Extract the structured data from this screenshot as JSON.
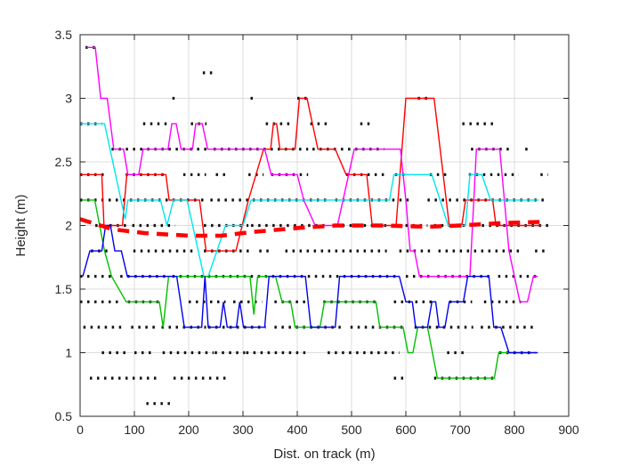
{
  "chart_data": {
    "type": "line",
    "title": "",
    "xlabel": "Dist. on track (m)",
    "ylabel": "Height (m)",
    "xlim": [
      0,
      900
    ],
    "ylim": [
      0.5,
      3.5
    ],
    "xticks": [
      0,
      100,
      200,
      300,
      400,
      500,
      600,
      700,
      800,
      900
    ],
    "xtick_labels": [
      "0",
      "100",
      "200",
      "300",
      "400",
      "500",
      "600",
      "700",
      "800",
      "900"
    ],
    "yticks": [
      0.5,
      1,
      1.5,
      2,
      2.5,
      3,
      3.5
    ],
    "ytick_labels": [
      "0.5",
      "1",
      "1.5",
      "2",
      "2.5",
      "3",
      "3.5"
    ],
    "grid": true,
    "grid_color": "#dcdcdc",
    "box_color": "#262626",
    "legend": "none",
    "series": [
      {
        "name": "red-line",
        "color": "#ff0000",
        "width": 1.4,
        "points": [
          [
            0,
            2.4
          ],
          [
            40,
            2.4
          ],
          [
            44,
            2.0
          ],
          [
            78,
            2.0
          ],
          [
            86,
            2.4
          ],
          [
            158,
            2.4
          ],
          [
            164,
            2.2
          ],
          [
            220,
            2.2
          ],
          [
            232,
            1.8
          ],
          [
            287,
            1.8
          ],
          [
            310,
            2.2
          ],
          [
            338,
            2.6
          ],
          [
            351,
            2.6
          ],
          [
            356,
            2.8
          ],
          [
            362,
            2.8
          ],
          [
            368,
            2.6
          ],
          [
            396,
            2.6
          ],
          [
            404,
            3.0
          ],
          [
            418,
            3.0
          ],
          [
            428,
            2.8
          ],
          [
            438,
            2.6
          ],
          [
            470,
            2.6
          ],
          [
            490,
            2.4
          ],
          [
            528,
            2.4
          ],
          [
            538,
            2.0
          ],
          [
            582,
            2.0
          ],
          [
            600,
            3.0
          ],
          [
            652,
            3.0
          ],
          [
            680,
            2.0
          ],
          [
            703,
            2.0
          ],
          [
            710,
            2.2
          ],
          [
            760,
            2.2
          ],
          [
            766,
            2.0
          ],
          [
            850,
            2.0
          ]
        ]
      },
      {
        "name": "magenta-line",
        "color": "#ff00ff",
        "width": 1.4,
        "points": [
          [
            12,
            3.4
          ],
          [
            28,
            3.4
          ],
          [
            38,
            3.0
          ],
          [
            50,
            3.0
          ],
          [
            62,
            2.6
          ],
          [
            80,
            2.6
          ],
          [
            88,
            2.4
          ],
          [
            108,
            2.4
          ],
          [
            116,
            2.6
          ],
          [
            162,
            2.6
          ],
          [
            169,
            2.8
          ],
          [
            177,
            2.8
          ],
          [
            186,
            2.6
          ],
          [
            207,
            2.6
          ],
          [
            213,
            2.8
          ],
          [
            225,
            2.8
          ],
          [
            235,
            2.6
          ],
          [
            340,
            2.6
          ],
          [
            352,
            2.4
          ],
          [
            400,
            2.4
          ],
          [
            412,
            2.2
          ],
          [
            433,
            2.0
          ],
          [
            474,
            2.0
          ],
          [
            505,
            2.6
          ],
          [
            590,
            2.6
          ],
          [
            600,
            2.2
          ],
          [
            608,
            1.8
          ],
          [
            616,
            1.8
          ],
          [
            625,
            1.6
          ],
          [
            718,
            1.6
          ],
          [
            730,
            2.6
          ],
          [
            773,
            2.6
          ],
          [
            790,
            1.8
          ],
          [
            800,
            1.6
          ],
          [
            810,
            1.4
          ],
          [
            824,
            1.4
          ],
          [
            835,
            1.6
          ],
          [
            843,
            1.6
          ]
        ]
      },
      {
        "name": "cyan-line",
        "color": "#00e5ee",
        "width": 1.4,
        "points": [
          [
            0,
            2.8
          ],
          [
            45,
            2.8
          ],
          [
            83,
            2.05
          ],
          [
            88,
            2.2
          ],
          [
            148,
            2.2
          ],
          [
            160,
            2.0
          ],
          [
            172,
            2.2
          ],
          [
            197,
            2.2
          ],
          [
            228,
            1.6
          ],
          [
            236,
            1.6
          ],
          [
            268,
            2.0
          ],
          [
            300,
            2.0
          ],
          [
            315,
            2.2
          ],
          [
            570,
            2.2
          ],
          [
            578,
            2.4
          ],
          [
            648,
            2.4
          ],
          [
            678,
            2.0
          ],
          [
            710,
            2.0
          ],
          [
            718,
            2.4
          ],
          [
            740,
            2.4
          ],
          [
            756,
            2.2
          ],
          [
            845,
            2.2
          ]
        ]
      },
      {
        "name": "green-line",
        "color": "#00c000",
        "width": 1.4,
        "points": [
          [
            3,
            2.2
          ],
          [
            27,
            2.2
          ],
          [
            45,
            1.8
          ],
          [
            58,
            1.6
          ],
          [
            85,
            1.4
          ],
          [
            146,
            1.4
          ],
          [
            153,
            1.2
          ],
          [
            163,
            1.6
          ],
          [
            313,
            1.6
          ],
          [
            320,
            1.3
          ],
          [
            327,
            1.6
          ],
          [
            360,
            1.6
          ],
          [
            372,
            1.4
          ],
          [
            388,
            1.4
          ],
          [
            396,
            1.2
          ],
          [
            442,
            1.2
          ],
          [
            450,
            1.4
          ],
          [
            545,
            1.4
          ],
          [
            552,
            1.2
          ],
          [
            595,
            1.2
          ],
          [
            604,
            1.0
          ],
          [
            613,
            1.0
          ],
          [
            622,
            1.2
          ],
          [
            640,
            1.2
          ],
          [
            658,
            0.8
          ],
          [
            763,
            0.8
          ],
          [
            771,
            1.0
          ],
          [
            833,
            1.0
          ]
        ]
      },
      {
        "name": "blue-line",
        "color": "#0000ee",
        "width": 1.4,
        "points": [
          [
            5,
            1.6
          ],
          [
            18,
            1.8
          ],
          [
            40,
            1.8
          ],
          [
            47,
            2.0
          ],
          [
            56,
            2.0
          ],
          [
            64,
            1.8
          ],
          [
            76,
            1.8
          ],
          [
            87,
            1.6
          ],
          [
            178,
            1.6
          ],
          [
            192,
            1.2
          ],
          [
            224,
            1.2
          ],
          [
            230,
            1.6
          ],
          [
            236,
            1.2
          ],
          [
            258,
            1.2
          ],
          [
            264,
            1.4
          ],
          [
            271,
            1.2
          ],
          [
            288,
            1.2
          ],
          [
            294,
            1.4
          ],
          [
            301,
            1.2
          ],
          [
            340,
            1.2
          ],
          [
            348,
            1.6
          ],
          [
            415,
            1.6
          ],
          [
            425,
            1.2
          ],
          [
            470,
            1.2
          ],
          [
            478,
            1.6
          ],
          [
            588,
            1.6
          ],
          [
            600,
            1.4
          ],
          [
            612,
            1.4
          ],
          [
            618,
            1.2
          ],
          [
            640,
            1.2
          ],
          [
            648,
            1.4
          ],
          [
            655,
            1.4
          ],
          [
            661,
            1.2
          ],
          [
            672,
            1.2
          ],
          [
            680,
            1.4
          ],
          [
            706,
            1.4
          ],
          [
            714,
            1.6
          ],
          [
            753,
            1.6
          ],
          [
            762,
            1.2
          ],
          [
            775,
            1.2
          ],
          [
            790,
            1.0
          ],
          [
            843,
            1.0
          ]
        ]
      }
    ],
    "trend": {
      "name": "dashed-red-trend",
      "color": "#ff0000",
      "width": 4.5,
      "dash": "13 9",
      "points": [
        [
          0,
          2.05
        ],
        [
          60,
          1.97
        ],
        [
          120,
          1.94
        ],
        [
          200,
          1.92
        ],
        [
          260,
          1.92
        ],
        [
          320,
          1.95
        ],
        [
          400,
          1.98
        ],
        [
          470,
          2.0
        ],
        [
          560,
          2.0
        ],
        [
          640,
          1.99
        ],
        [
          700,
          2.0
        ],
        [
          780,
          2.02
        ],
        [
          860,
          2.03
        ]
      ]
    },
    "dot_rows": {
      "color": "#111111",
      "width": 3.2,
      "dash": "2.5 5.5",
      "rows": [
        {
          "y": 3.4,
          "segments": [
            [
              10,
              30
            ]
          ]
        },
        {
          "y": 3.2,
          "segments": [
            [
              226,
              244
            ]
          ]
        },
        {
          "y": 3.0,
          "segments": [
            [
              170,
              175
            ],
            [
              314,
              318
            ],
            [
              400,
              419
            ],
            [
              622,
              641
            ]
          ]
        },
        {
          "y": 2.8,
          "segments": [
            [
              0,
              40
            ],
            [
              116,
              164
            ],
            [
              204,
              233
            ],
            [
              342,
              392
            ],
            [
              424,
              463
            ],
            [
              516,
              540
            ],
            [
              704,
              766
            ]
          ]
        },
        {
          "y": 2.6,
          "segments": [
            [
              58,
              238
            ],
            [
              246,
              420
            ],
            [
              428,
              560
            ],
            [
              720,
              790
            ],
            [
              820,
              828
            ]
          ]
        },
        {
          "y": 2.4,
          "segments": [
            [
              0,
              45
            ],
            [
              84,
              160
            ],
            [
              190,
              232
            ],
            [
              250,
              268
            ],
            [
              310,
              338
            ],
            [
              352,
              420
            ],
            [
              490,
              560
            ],
            [
              580,
              600
            ],
            [
              644,
              680
            ],
            [
              716,
              808
            ],
            [
              848,
              862
            ]
          ]
        },
        {
          "y": 2.2,
          "segments": [
            [
              0,
              230
            ],
            [
              240,
              310
            ],
            [
              318,
              460
            ],
            [
              470,
              610
            ],
            [
              640,
              860
            ]
          ]
        },
        {
          "y": 2.0,
          "segments": [
            [
              28,
              92
            ],
            [
              96,
              175
            ],
            [
              228,
              310
            ],
            [
              315,
              458
            ],
            [
              470,
              545
            ],
            [
              560,
              640
            ],
            [
              652,
              712
            ],
            [
              740,
              870
            ]
          ]
        },
        {
          "y": 1.8,
          "segments": [
            [
              20,
              52
            ],
            [
              98,
              215
            ],
            [
              228,
              312
            ],
            [
              330,
              350
            ],
            [
              378,
              565
            ],
            [
              588,
              648
            ],
            [
              660,
              810
            ],
            [
              838,
              862
            ]
          ]
        },
        {
          "y": 1.6,
          "segments": [
            [
              0,
              62
            ],
            [
              74,
              164
            ],
            [
              170,
              372
            ],
            [
              380,
              585
            ],
            [
              600,
              650
            ],
            [
              658,
              762
            ],
            [
              770,
              845
            ]
          ]
        },
        {
          "y": 1.4,
          "segments": [
            [
              0,
              70
            ],
            [
              88,
              150
            ],
            [
              200,
              268
            ],
            [
              282,
              335
            ],
            [
              358,
              420
            ],
            [
              448,
              550
            ],
            [
              578,
              652
            ],
            [
              680,
              722
            ],
            [
              744,
              812
            ]
          ]
        },
        {
          "y": 1.2,
          "segments": [
            [
              6,
              76
            ],
            [
              94,
              142
            ],
            [
              150,
              232
            ],
            [
              236,
              342
            ],
            [
              358,
              480
            ],
            [
              498,
              602
            ],
            [
              616,
              724
            ],
            [
              738,
              836
            ]
          ]
        },
        {
          "y": 1.0,
          "segments": [
            [
              40,
              92
            ],
            [
              100,
              136
            ],
            [
              152,
              246
            ],
            [
              248,
              304
            ],
            [
              306,
              418
            ],
            [
              456,
              588
            ],
            [
              676,
              714
            ],
            [
              772,
              838
            ]
          ]
        },
        {
          "y": 0.8,
          "segments": [
            [
              18,
              144
            ],
            [
              172,
              276
            ],
            [
              578,
              598
            ],
            [
              652,
              766
            ]
          ]
        },
        {
          "y": 0.6,
          "segments": [
            [
              122,
              168
            ]
          ]
        }
      ]
    }
  }
}
